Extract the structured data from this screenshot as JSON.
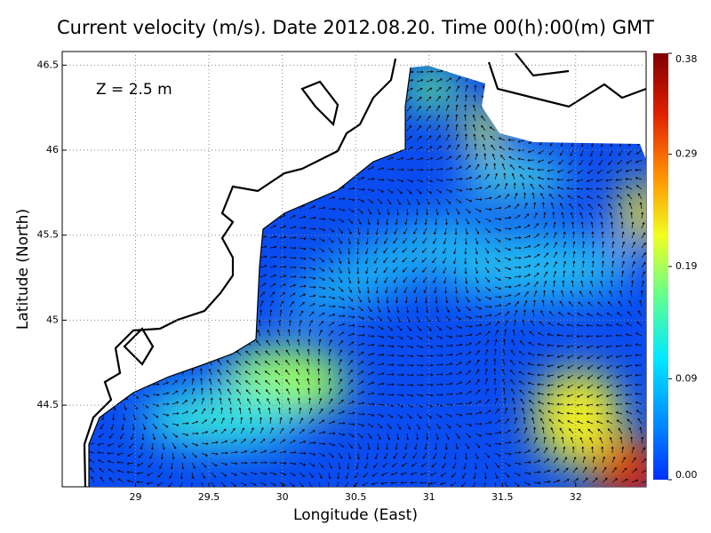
{
  "chart_data": {
    "type": "map",
    "title": "Current velocity (m/s). Date 2012.08.20. Time 00(h):00(m) GMT",
    "annotation": "Z = 2.5 m",
    "x_label": "Longitude (East)",
    "y_label": "Latitude (North)",
    "xlim": [
      28.5,
      32.48
    ],
    "ylim": [
      44.02,
      46.58
    ],
    "xticks": [
      29,
      29.5,
      30,
      30.5,
      31,
      31.5,
      32
    ],
    "yticks": [
      44.5,
      45,
      45.5,
      46,
      46.5
    ],
    "grid": true,
    "colorbar": {
      "lim": [
        0,
        0.38
      ],
      "ticks": [
        {
          "value": 0,
          "label": "0.00"
        },
        {
          "value": 0.09,
          "label": "0.09"
        },
        {
          "value": 0.19,
          "label": "0.19"
        },
        {
          "value": 0.29,
          "label": "0.29"
        },
        {
          "value": 0.38,
          "label": "0.38"
        }
      ],
      "colors": [
        "#0030ff",
        "#0090ff",
        "#00e8ff",
        "#60ff90",
        "#f0ff20",
        "#ff9000",
        "#e02000",
        "#800000"
      ]
    }
  }
}
